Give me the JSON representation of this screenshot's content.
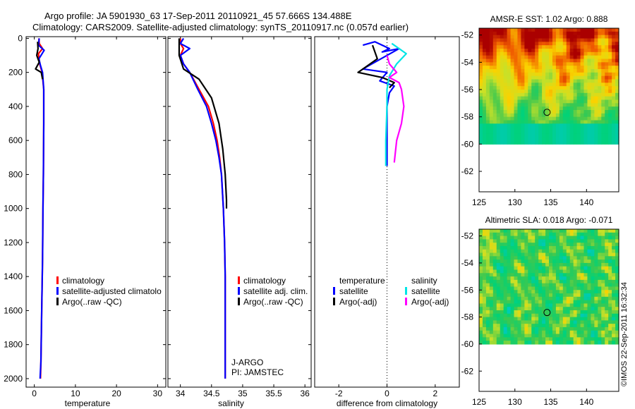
{
  "header": {
    "line1": "Argo profile: JA 5901930_63 17-Sep-2011 20110921_45 57.666S 134.488E",
    "line2": "Climatology: CARS2009. Satellite-adjusted climatology: synTS_20110917.nc (0.057d earlier)"
  },
  "credit": "©IMOS 22-Sep-2011 16:32:34",
  "colors": {
    "red": "#ff0000",
    "blue": "#0000ff",
    "black": "#000000",
    "cyan": "#00e5e5",
    "magenta": "#ff00ff"
  },
  "chart_data": [
    {
      "id": "temperature",
      "type": "line",
      "xlabel": "temperature",
      "xlim": [
        -2,
        32
      ],
      "ylim": [
        2050,
        -10
      ],
      "xticks": [
        0,
        10,
        20,
        30
      ],
      "yticks": [
        0,
        200,
        400,
        600,
        800,
        1000,
        1200,
        1400,
        1600,
        1800,
        2000
      ],
      "legend": [
        "climatology",
        "satellite-adjusted climatolo",
        "Argo(..raw -QC)"
      ],
      "series": [
        {
          "name": "climatology",
          "color": "#ff0000",
          "x": [
            1.1,
            1.2,
            2.0,
            1.0,
            1.3,
            1.9,
            2.3,
            2.3,
            2.2,
            2.1,
            2.0,
            1.8,
            1.6,
            1.5
          ],
          "y": [
            0,
            30,
            60,
            90,
            150,
            200,
            300,
            500,
            800,
            1000,
            1300,
            1600,
            1900,
            2000
          ]
        },
        {
          "name": "satellite-adjusted climatology",
          "color": "#0000ff",
          "x": [
            1.2,
            1.0,
            2.4,
            1.1,
            1.5,
            2.0,
            2.3,
            2.3,
            2.2,
            2.1,
            2.0,
            1.8,
            1.6,
            1.4
          ],
          "y": [
            0,
            40,
            70,
            120,
            160,
            200,
            300,
            500,
            800,
            1000,
            1300,
            1600,
            1900,
            2000
          ]
        },
        {
          "name": "Argo(..raw -QC)",
          "color": "#000000",
          "x": [
            0.8,
            0.9,
            0.6,
            1.2,
            0.3,
            1.7,
            2.0
          ],
          "y": [
            20,
            60,
            100,
            140,
            180,
            200,
            240
          ]
        }
      ]
    },
    {
      "id": "salinity",
      "type": "line",
      "xlabel": "salinity",
      "xlim": [
        33.8,
        36.1
      ],
      "ylim": [
        2050,
        -10
      ],
      "xticks": [
        34,
        34.5,
        35,
        35.5,
        36
      ],
      "yticks": [
        0,
        200,
        400,
        600,
        800,
        1000,
        1200,
        1400,
        1600,
        1800,
        2000
      ],
      "legend": [
        "climatology",
        "satellite adj. clim.",
        "Argo(..raw -QC)"
      ],
      "annotation": [
        "J-ARGO",
        "PI: JAMSTEC"
      ],
      "series": [
        {
          "name": "climatology",
          "color": "#ff0000",
          "x": [
            34.0,
            34.0,
            34.05,
            34.0,
            34.05,
            34.15,
            34.3,
            34.45,
            34.53,
            34.59,
            34.63,
            34.66,
            34.69,
            34.71,
            34.72,
            34.72,
            34.72,
            34.72
          ],
          "y": [
            0,
            30,
            60,
            100,
            150,
            200,
            300,
            400,
            500,
            600,
            700,
            800,
            1000,
            1200,
            1400,
            1600,
            1800,
            2000
          ]
        },
        {
          "name": "satellite adj. clim.",
          "color": "#0000ff",
          "x": [
            34.05,
            34.0,
            34.15,
            34.0,
            34.05,
            34.15,
            34.28,
            34.42,
            34.5,
            34.57,
            34.62,
            34.66,
            34.69,
            34.71,
            34.72,
            34.72,
            34.72,
            34.72
          ],
          "y": [
            0,
            30,
            60,
            100,
            150,
            200,
            300,
            400,
            500,
            600,
            700,
            800,
            1000,
            1200,
            1400,
            1600,
            1800,
            2000
          ]
        },
        {
          "name": "Argo(..raw -QC)",
          "color": "#000000",
          "x": [
            33.98,
            33.98,
            34.05,
            34.3,
            34.5,
            34.62,
            34.68,
            34.72,
            34.74,
            34.74
          ],
          "y": [
            0,
            100,
            180,
            240,
            350,
            500,
            650,
            800,
            950,
            1000
          ]
        }
      ]
    },
    {
      "id": "difference",
      "type": "line",
      "xlabel": "difference from climatology",
      "xlim": [
        -3.0,
        3.0
      ],
      "ylim": [
        2050,
        -10
      ],
      "xticks": [
        -2,
        0,
        2
      ],
      "yticks": [],
      "legend_temperature_title": "temperature",
      "legend_salinity_title": "salinity",
      "legend": [
        "satellite",
        "Argo(-adj)",
        "satellite",
        "Argo(-adj)"
      ],
      "series": [
        {
          "name": "temperature satellite",
          "color": "#0000ff",
          "x": [
            -1.0,
            -0.5,
            0.1,
            -0.2,
            0.5,
            -1.0,
            0.0,
            -0.3,
            0.3,
            0.1,
            0.0,
            0.0,
            0.0
          ],
          "y": [
            40,
            20,
            60,
            80,
            60,
            180,
            200,
            250,
            280,
            320,
            400,
            600,
            750
          ]
        },
        {
          "name": "temperature Argo(-adj)",
          "color": "#000000",
          "x": [
            -0.6,
            -0.5,
            -0.4,
            -0.8,
            -1.2,
            -0.2,
            0.3,
            0.1
          ],
          "y": [
            40,
            80,
            120,
            160,
            200,
            230,
            260,
            290
          ]
        },
        {
          "name": "salinity satellite",
          "color": "#00e5e5",
          "x": [
            0.2,
            0.5,
            0.8,
            0.4,
            0.1,
            0.0,
            0.0,
            -0.05,
            -0.05
          ],
          "y": [
            30,
            60,
            90,
            150,
            220,
            300,
            400,
            600,
            750
          ]
        },
        {
          "name": "salinity Argo(-adj)",
          "color": "#ff00ff",
          "x": [
            0.0,
            0.1,
            0.4,
            0.1,
            0.5,
            0.6,
            0.7,
            0.6,
            0.4,
            0.3
          ],
          "y": [
            100,
            150,
            200,
            230,
            260,
            300,
            400,
            500,
            600,
            730
          ]
        }
      ]
    },
    {
      "id": "sst-map",
      "type": "heatmap",
      "title": "AMSR-E SST: 1.02  Argo: 0.888",
      "xlim": [
        125,
        144.5
      ],
      "ylim": [
        -63.5,
        -51.5
      ],
      "xticks": [
        125,
        130,
        135,
        140
      ],
      "yticks": [
        -52,
        -54,
        -56,
        -58,
        -60,
        -62
      ],
      "data_extent": {
        "lon": [
          125,
          144.5
        ],
        "lat": [
          -60,
          -51.5
        ]
      },
      "marker": {
        "lon": 134.488,
        "lat": -57.666
      }
    },
    {
      "id": "sla-map",
      "type": "heatmap",
      "title": "Altimetric SLA: 0.018  Argo: -0.071",
      "xlim": [
        125,
        144.5
      ],
      "ylim": [
        -63.5,
        -51.5
      ],
      "xticks": [
        125,
        130,
        135,
        140
      ],
      "yticks": [
        -52,
        -54,
        -56,
        -58,
        -60,
        -62
      ],
      "data_extent": {
        "lon": [
          125,
          144.5
        ],
        "lat": [
          -60,
          -51.5
        ]
      },
      "marker": {
        "lon": 134.488,
        "lat": -57.666
      }
    }
  ]
}
